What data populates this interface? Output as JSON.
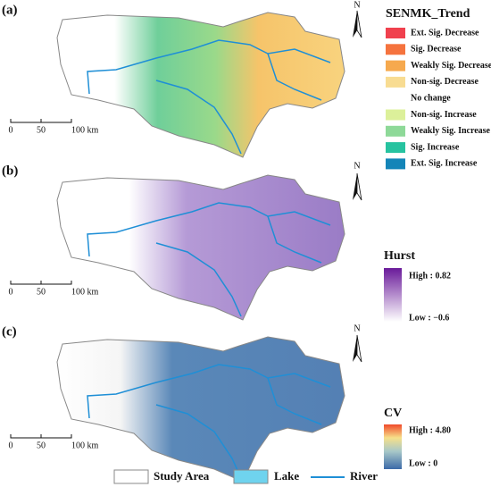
{
  "panels": [
    {
      "label": "(a)",
      "legend_title": "SENMK_Trend",
      "classes": [
        {
          "label": "Ext. Sig. Decrease",
          "color": "#f0414e"
        },
        {
          "label": "Sig. Decrease",
          "color": "#f5733e"
        },
        {
          "label": "Weakly Sig. Decrease",
          "color": "#f6a94e"
        },
        {
          "label": "Non-sig. Decrease",
          "color": "#f8dc92"
        },
        {
          "label": "No change",
          "color": "#ffffff"
        },
        {
          "label": "Non-sig. Increase",
          "color": "#dcf09a"
        },
        {
          "label": "Weakly Sig. Increase",
          "color": "#8ed998"
        },
        {
          "label": "Sig. Increase",
          "color": "#27c3a0"
        },
        {
          "label": "Ext. Sig. Increase",
          "color": "#1485b8"
        }
      ]
    },
    {
      "label": "(b)",
      "legend_title": "Hurst",
      "high": "High : 0.82",
      "low": "Low : −0.6"
    },
    {
      "label": "(c)",
      "legend_title": "CV",
      "high": "High : 4.80",
      "low": "Low : 0"
    }
  ],
  "north": "N",
  "scale_bar": [
    "0",
    "50",
    "100 km"
  ],
  "legend": [
    "Study Area",
    "Lake",
    "River"
  ]
}
